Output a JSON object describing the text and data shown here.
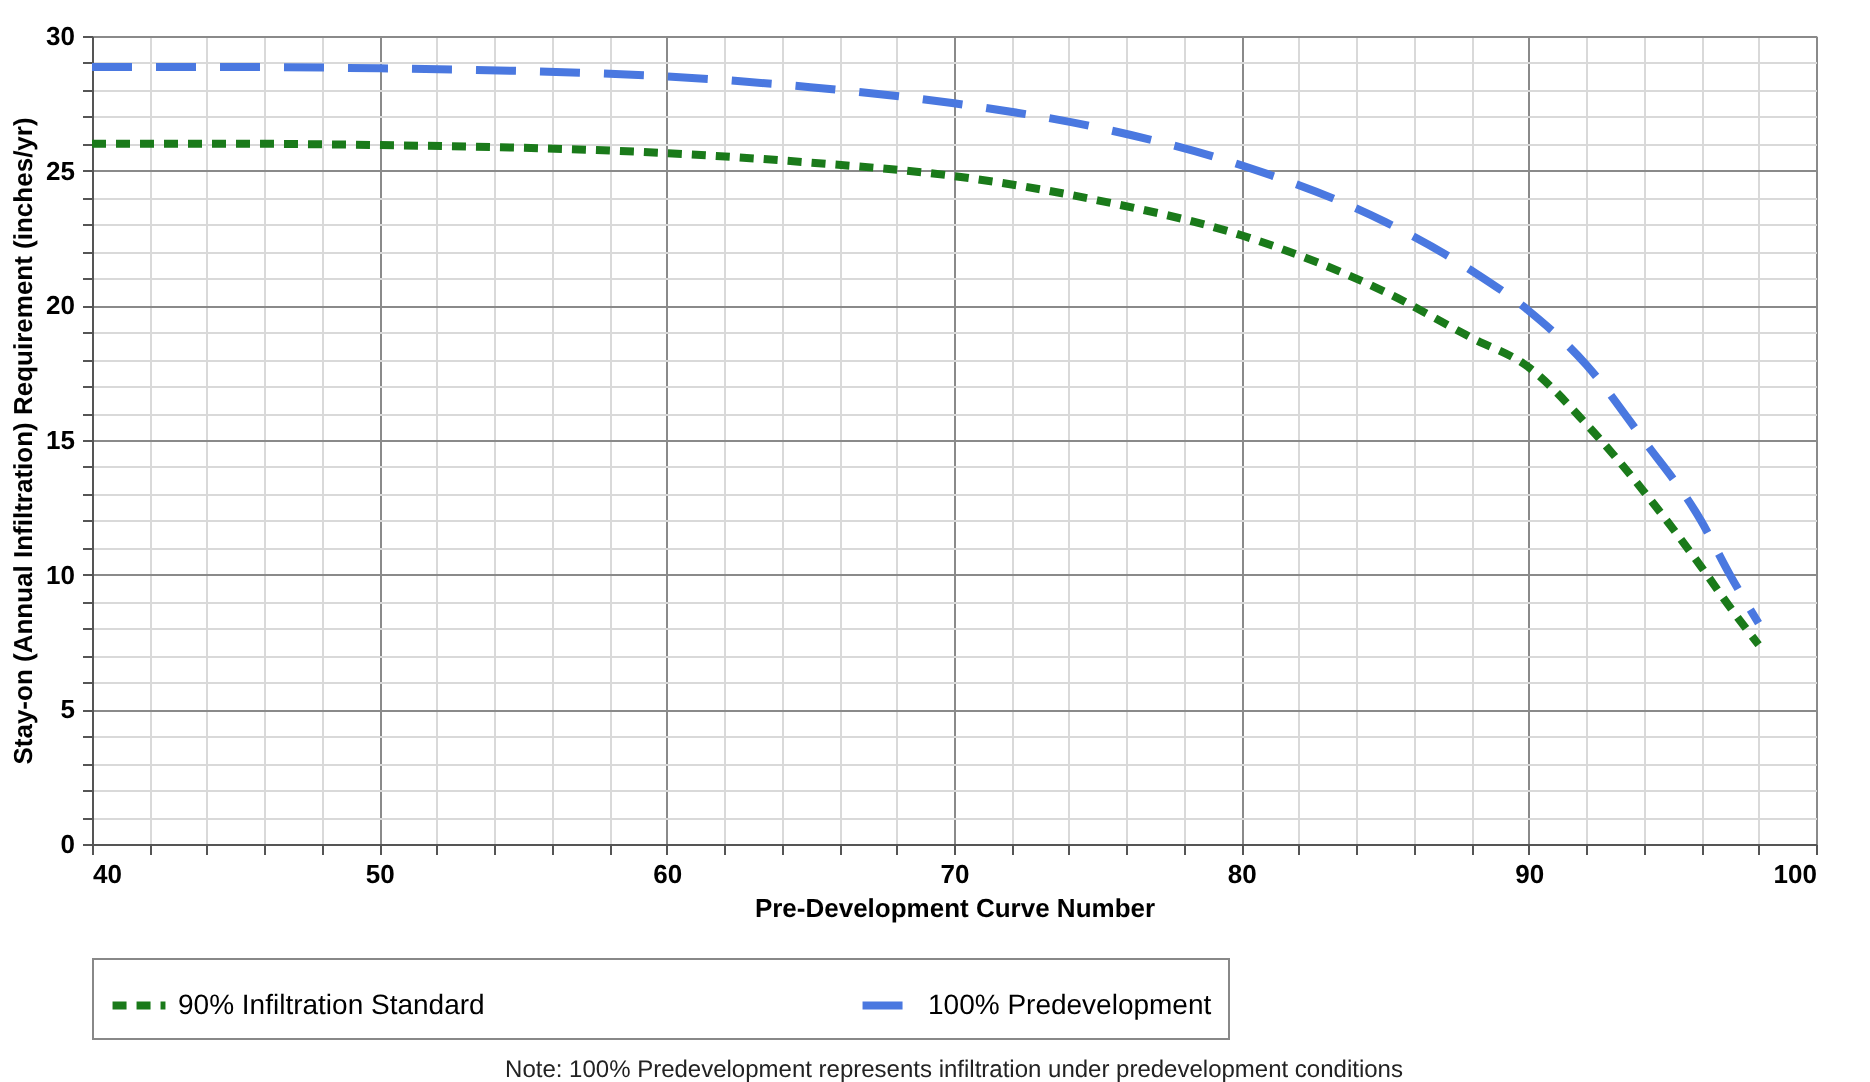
{
  "chart_data": {
    "type": "line",
    "xlabel": "Pre-Development Curve Number",
    "ylabel": "Stay-on (Annual Infiltration) Requirement (inches/yr)",
    "annotations": [
      "Note: 100% Predevelopment represents infiltration under predevelopment conditions"
    ],
    "series": [
      {
        "name": "90% Infiltration Standard",
        "color": "#1a7a1a",
        "line_style": "dashed",
        "x": [
          40,
          45,
          50,
          55,
          60,
          65,
          70,
          75,
          80,
          85,
          88,
          90,
          92,
          94,
          96,
          97,
          98
        ],
        "values": [
          26,
          26,
          25.95,
          25.85,
          25.65,
          25.3,
          24.8,
          23.9,
          22.6,
          20.5,
          18.8,
          17.7,
          15.6,
          13.1,
          10.3,
          8.8,
          7.4
        ]
      },
      {
        "name": "100% Predevelopment",
        "color": "#4a78e0",
        "line_style": "dashed",
        "x": [
          40,
          45,
          50,
          55,
          60,
          65,
          70,
          75,
          80,
          85,
          88,
          90,
          92,
          94,
          96,
          97,
          98
        ],
        "values": [
          28.85,
          28.85,
          28.8,
          28.7,
          28.5,
          28.1,
          27.5,
          26.6,
          25.2,
          23.1,
          21.3,
          19.8,
          17.8,
          15,
          12,
          10,
          8.2
        ]
      }
    ],
    "xlim": [
      40,
      100
    ],
    "xticks": [
      40,
      {
        "value": 42,
        "label": null
      },
      {
        "value": 44,
        "label": null
      },
      {
        "value": 46,
        "label": null
      },
      {
        "value": 48,
        "label": null
      },
      50,
      {
        "value": 52,
        "label": null
      },
      {
        "value": 54,
        "label": null
      },
      {
        "value": 56,
        "label": null
      },
      {
        "value": 58,
        "label": null
      },
      60,
      {
        "value": 62,
        "label": null
      },
      {
        "value": 64,
        "label": null
      },
      {
        "value": 66,
        "label": null
      },
      {
        "value": 68,
        "label": null
      },
      70,
      {
        "value": 72,
        "label": null
      },
      {
        "value": 74,
        "label": null
      },
      {
        "value": 76,
        "label": null
      },
      {
        "value": 78,
        "label": null
      },
      80,
      {
        "value": 82,
        "label": null
      },
      {
        "value": 84,
        "label": null
      },
      {
        "value": 86,
        "label": null
      },
      {
        "value": 88,
        "label": null
      },
      90,
      {
        "value": 92,
        "label": null
      },
      {
        "value": 94,
        "label": null
      },
      {
        "value": 96,
        "label": null
      },
      {
        "value": 98,
        "label": null
      },
      100
    ],
    "ylim": [
      0,
      30
    ],
    "yticks": [
      0,
      {
        "value": 1,
        "label": null
      },
      {
        "value": 2,
        "label": null
      },
      {
        "value": 3,
        "label": null
      },
      {
        "value": 4,
        "label": null
      },
      5,
      {
        "value": 6,
        "label": null
      },
      {
        "value": 7,
        "label": null
      },
      {
        "value": 8,
        "label": null
      },
      {
        "value": 9,
        "label": null
      },
      10,
      {
        "value": 11,
        "label": null
      },
      {
        "value": 12,
        "label": null
      },
      {
        "value": 13,
        "label": null
      },
      {
        "value": 14,
        "label": null
      },
      15,
      {
        "value": 16,
        "label": null
      },
      {
        "value": 17,
        "label": null
      },
      {
        "value": 18,
        "label": null
      },
      {
        "value": 19,
        "label": null
      },
      20,
      {
        "value": 21,
        "label": null
      },
      {
        "value": 22,
        "label": null
      },
      {
        "value": 23,
        "label": null
      },
      {
        "value": 24,
        "label": null
      },
      25,
      {
        "value": 26,
        "label": null
      },
      {
        "value": 27,
        "label": null
      },
      {
        "value": 28,
        "label": null
      },
      {
        "value": 29,
        "label": null
      },
      30
    ],
    "grid": true,
    "legend": "bottom",
    "marker": "none"
  }
}
